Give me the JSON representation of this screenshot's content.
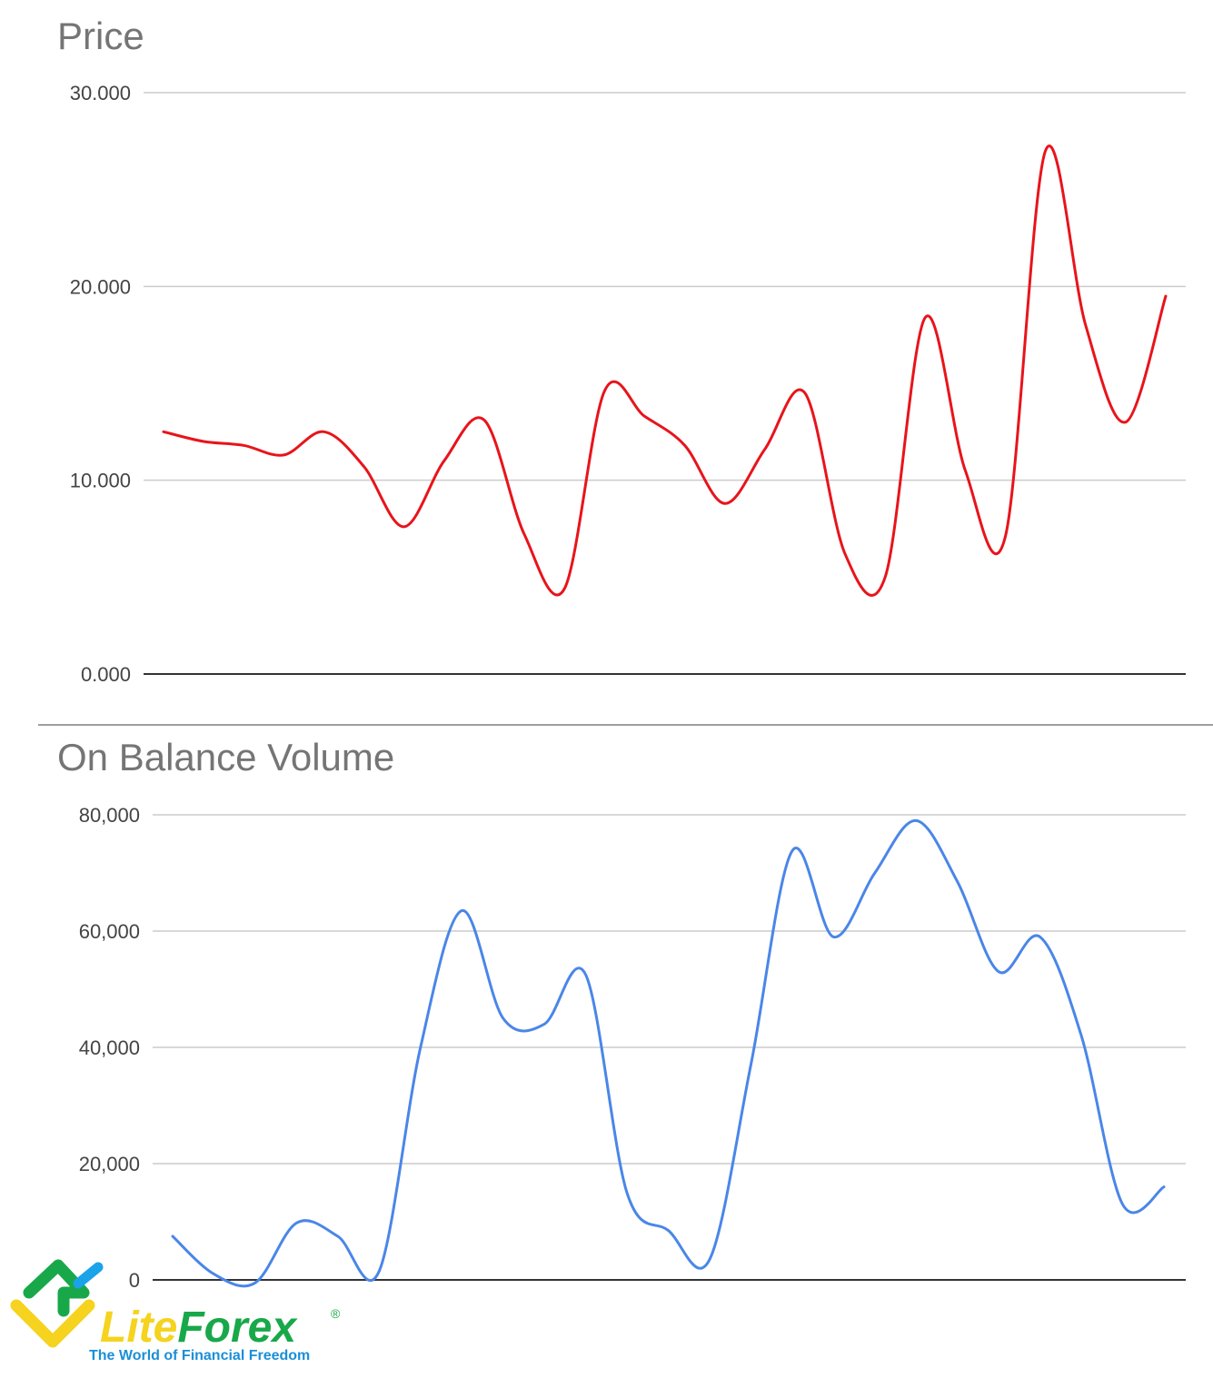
{
  "chart_data": [
    {
      "type": "line",
      "title": "Price",
      "ylim": [
        0,
        30
      ],
      "yticks": [
        "0.000",
        "10.000",
        "20.000",
        "30.000"
      ],
      "ytick_values": [
        0,
        10,
        20,
        30
      ],
      "grid": true,
      "color": "#e8141b",
      "series": [
        {
          "values": [
            12.5,
            12.0,
            11.8,
            11.3,
            12.5,
            10.7,
            7.6,
            11.0,
            13.1,
            7.2,
            4.4,
            14.6,
            13.3,
            11.8,
            8.8,
            11.6,
            14.5,
            6.2,
            5.0,
            18.4,
            10.5,
            7.1,
            27.0,
            18.0,
            13.0,
            19.5
          ]
        }
      ]
    },
    {
      "type": "line",
      "title": "On Balance Volume",
      "ylim": [
        0,
        80000
      ],
      "yticks": [
        "0",
        "20,000",
        "40,000",
        "60,000",
        "80,000"
      ],
      "ytick_values": [
        0,
        20000,
        40000,
        60000,
        80000
      ],
      "grid": true,
      "color": "#4a86e8",
      "series": [
        {
          "values": [
            7500,
            1000,
            -500,
            9800,
            7500,
            1500,
            40000,
            63500,
            45000,
            44000,
            52500,
            15000,
            8500,
            3500,
            37000,
            73800,
            59000,
            70000,
            79000,
            68500,
            53000,
            59000,
            42000,
            13000,
            16000
          ]
        }
      ]
    }
  ],
  "logo": {
    "brand_part1": "Lite",
    "brand_part2": "Forex",
    "registered": "®",
    "tagline": "The World of Financial Freedom"
  }
}
